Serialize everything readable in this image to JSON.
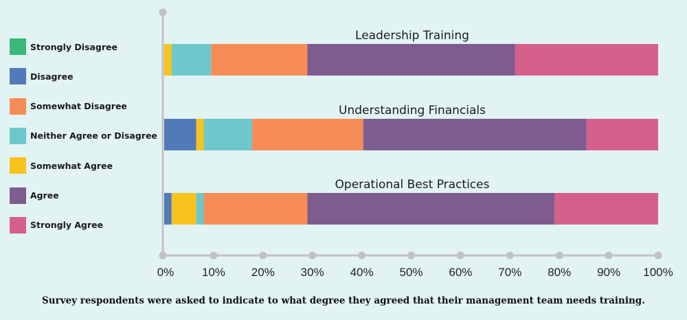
{
  "legend": [
    {
      "label": "Strongly Disagree",
      "color": "#3bb878"
    },
    {
      "label": "Disagree",
      "color": "#527ab8"
    },
    {
      "label": "Somewhat Disagree",
      "color": "#f68c56"
    },
    {
      "label": "Neither Agree or Disagree",
      "color": "#6dc8cc"
    },
    {
      "label": "Somewhat Agree",
      "color": "#f7c31f"
    },
    {
      "label": "Agree",
      "color": "#7e5c8f"
    },
    {
      "label": "Strongly Agree",
      "color": "#d6608c"
    }
  ],
  "caption": "Survey respondents were asked to indicate to what degree they agreed that their management team needs training.",
  "chart_data": {
    "type": "bar",
    "orientation": "horizontal",
    "stacked": true,
    "categories": [
      "Leadership Training",
      "Understanding Financials",
      "Operational Best Practices"
    ],
    "x_ticks": [
      "0%",
      "10%",
      "20%",
      "30%",
      "40%",
      "50%",
      "60%",
      "70%",
      "80%",
      "90%",
      "100%"
    ],
    "xlim": [
      0,
      100
    ],
    "segments": [
      [
        {
          "series": "Somewhat Agree",
          "value": 1.5
        },
        {
          "series": "Neither Agree or Disagree",
          "value": 8
        },
        {
          "series": "Somewhat Disagree",
          "value": 19.5
        },
        {
          "series": "Agree",
          "value": 42
        },
        {
          "series": "Strongly Agree",
          "value": 29
        }
      ],
      [
        {
          "series": "Disagree",
          "value": 6.5
        },
        {
          "series": "Somewhat Agree",
          "value": 1.5
        },
        {
          "series": "Neither Agree or Disagree",
          "value": 9.8
        },
        {
          "series": "Somewhat Disagree",
          "value": 22.5
        },
        {
          "series": "Agree",
          "value": 45.2
        },
        {
          "series": "Strongly Agree",
          "value": 14.5
        }
      ],
      [
        {
          "series": "Disagree",
          "value": 1.5
        },
        {
          "series": "Somewhat Agree",
          "value": 5
        },
        {
          "series": "Neither Agree or Disagree",
          "value": 1.5
        },
        {
          "series": "Somewhat Disagree",
          "value": 21
        },
        {
          "series": "Agree",
          "value": 50
        },
        {
          "series": "Strongly Agree",
          "value": 21
        }
      ]
    ]
  }
}
